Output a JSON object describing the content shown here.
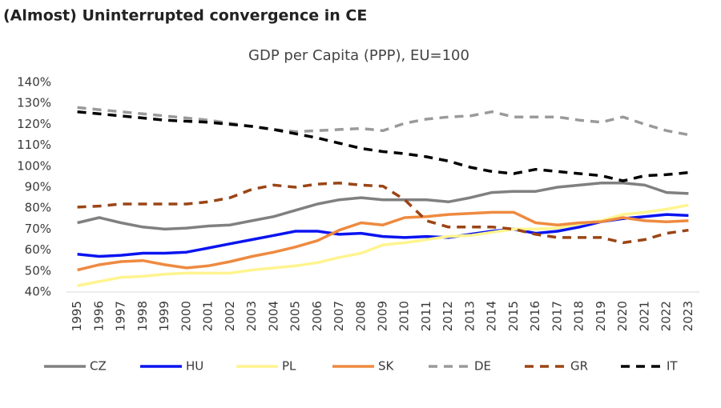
{
  "chart_data": {
    "type": "line",
    "title": "(Almost) Uninterrupted convergence in CE",
    "subtitle": "GDP per Capita (PPP), EU=100",
    "categories": [
      "1995",
      "1996",
      "1997",
      "1998",
      "1999",
      "2000",
      "2001",
      "2002",
      "2003",
      "2004",
      "2005",
      "2006",
      "2007",
      "2008",
      "2009",
      "2010",
      "2011",
      "2012",
      "2013",
      "2014",
      "2015",
      "2016",
      "2017",
      "2018",
      "2019",
      "2020",
      "2021",
      "2022",
      "2023"
    ],
    "series": [
      {
        "name": "CZ",
        "color": "#808080",
        "dashed": false,
        "values": [
          73,
          75.5,
          73,
          71,
          70,
          70.5,
          71.5,
          72,
          74,
          76,
          79,
          82,
          84,
          85,
          84,
          84,
          84,
          83,
          85,
          87.5,
          88,
          88,
          90,
          91,
          92,
          92,
          91,
          87.5,
          87
        ]
      },
      {
        "name": "HU",
        "color": "#0a14f0",
        "dashed": false,
        "values": [
          58,
          57,
          57.5,
          58.5,
          58.5,
          59,
          61,
          63,
          65,
          67,
          69,
          69,
          67.5,
          68,
          66.5,
          66,
          66.5,
          66,
          67.5,
          69,
          70,
          68,
          69,
          71,
          73.5,
          75,
          76,
          77,
          76.5
        ]
      },
      {
        "name": "PL",
        "color": "#fff48f",
        "dashed": false,
        "values": [
          43,
          45,
          47,
          47.5,
          48.5,
          49,
          49,
          49,
          50.5,
          51.5,
          52.5,
          54,
          56.5,
          58.5,
          62.5,
          63.5,
          65,
          66.5,
          67,
          68.5,
          70,
          70,
          70.5,
          72.5,
          74,
          77,
          78,
          79.5,
          81.5
        ]
      },
      {
        "name": "SK",
        "color": "#ee8a40",
        "dashed": false,
        "values": [
          50.5,
          53,
          54.5,
          55,
          53,
          51.5,
          52.5,
          54.5,
          57,
          59,
          61.5,
          64.5,
          69.5,
          73,
          72,
          75.5,
          76,
          77,
          77.5,
          78,
          78,
          73,
          72,
          73,
          73.5,
          75.5,
          74,
          73.5,
          74
        ]
      },
      {
        "name": "DE",
        "color": "#9a9a9a",
        "dashed": true,
        "values": [
          128,
          127,
          126,
          125,
          124,
          123,
          122,
          120.5,
          119,
          117.5,
          116.5,
          117,
          117.5,
          118,
          117,
          120.5,
          122.5,
          123.5,
          124,
          126,
          123.5,
          123.5,
          123.5,
          122,
          121,
          123.5,
          120,
          117,
          115
        ]
      },
      {
        "name": "GR",
        "color": "#9a4515",
        "dashed": true,
        "values": [
          80.5,
          81,
          82,
          82,
          82,
          82,
          83,
          85,
          89,
          91,
          90,
          91.5,
          92,
          91,
          90.5,
          84,
          74,
          71,
          71,
          71,
          70,
          67.5,
          66,
          66,
          66,
          63.5,
          65,
          68,
          69.5
        ]
      },
      {
        "name": "IT",
        "color": "#000000",
        "dashed": true,
        "values": [
          126,
          125,
          124,
          123,
          122,
          121.5,
          121,
          120,
          119,
          117.5,
          115.5,
          113.5,
          111,
          108.5,
          107,
          106,
          104.5,
          102.5,
          99.5,
          97.5,
          96.5,
          98.5,
          97.5,
          96.5,
          95.5,
          93,
          95.5,
          96,
          97
        ]
      }
    ],
    "ylim": [
      40,
      140
    ],
    "yticks": [
      {
        "value": 40,
        "label": "40%"
      },
      {
        "value": 50,
        "label": "50%"
      },
      {
        "value": 60,
        "label": "60%"
      },
      {
        "value": 70,
        "label": "70%"
      },
      {
        "value": 80,
        "label": "80%"
      },
      {
        "value": 90,
        "label": "90%"
      },
      {
        "value": 100,
        "label": "100%"
      },
      {
        "value": 110,
        "label": "110%"
      },
      {
        "value": 120,
        "label": "120%"
      },
      {
        "value": 130,
        "label": "130%"
      },
      {
        "value": 140,
        "label": "140%"
      }
    ],
    "grid": false,
    "legend": "bottom"
  }
}
